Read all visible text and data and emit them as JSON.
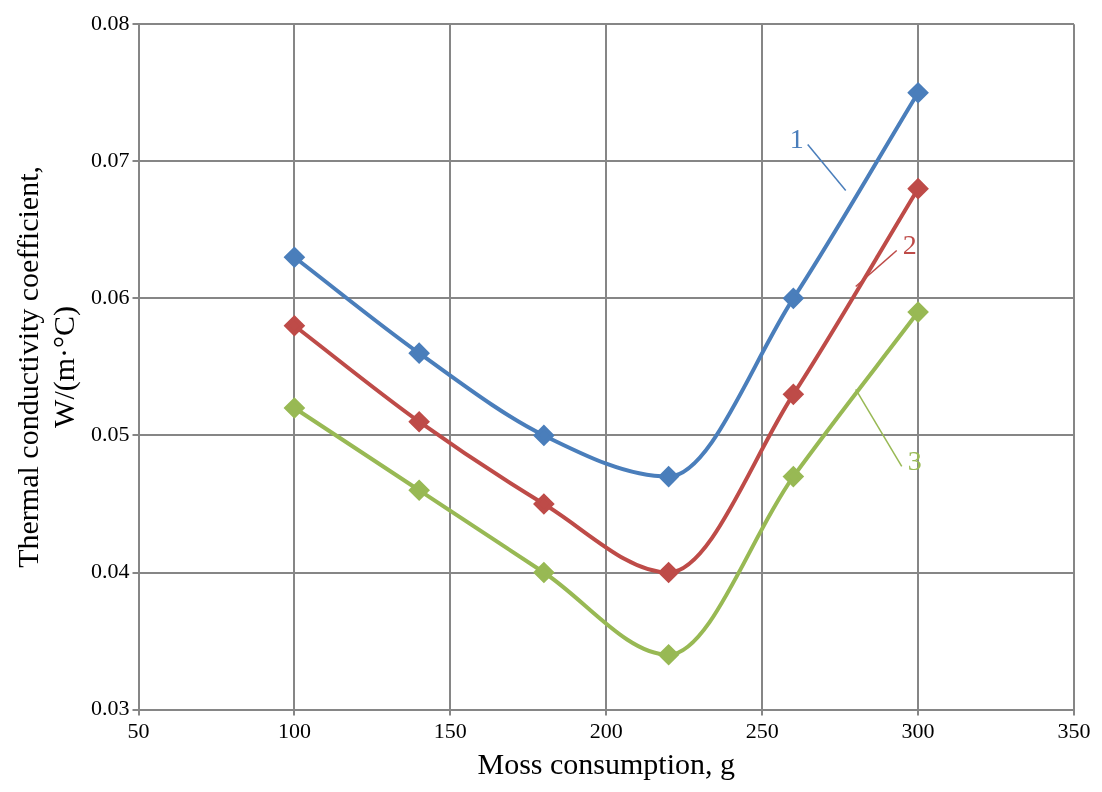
{
  "chart_data": {
    "type": "line",
    "xlabel": "Moss consumption, g",
    "ylabel": "Thermal conductivity coefficient, W/(m·°C)",
    "x": [
      100,
      140,
      180,
      220,
      260,
      300
    ],
    "series": [
      {
        "name": "1",
        "color": "#4a7ebb",
        "values": [
          0.063,
          0.056,
          0.05,
          0.047,
          0.06,
          0.075
        ]
      },
      {
        "name": "2",
        "color": "#be4b48",
        "values": [
          0.058,
          0.051,
          0.045,
          0.04,
          0.053,
          0.068
        ]
      },
      {
        "name": "3",
        "color": "#98b954",
        "values": [
          0.052,
          0.046,
          0.04,
          0.034,
          0.047,
          0.059
        ]
      }
    ],
    "xlim": [
      50,
      350
    ],
    "xticks": [
      50,
      100,
      150,
      200,
      250,
      300,
      350
    ],
    "ylim": [
      0.03,
      0.08
    ],
    "yticks": [
      0.03,
      0.04,
      0.05,
      0.06,
      0.07,
      0.08
    ],
    "grid": true,
    "legend": false,
    "marker": "diamond",
    "line_style": "solid"
  }
}
